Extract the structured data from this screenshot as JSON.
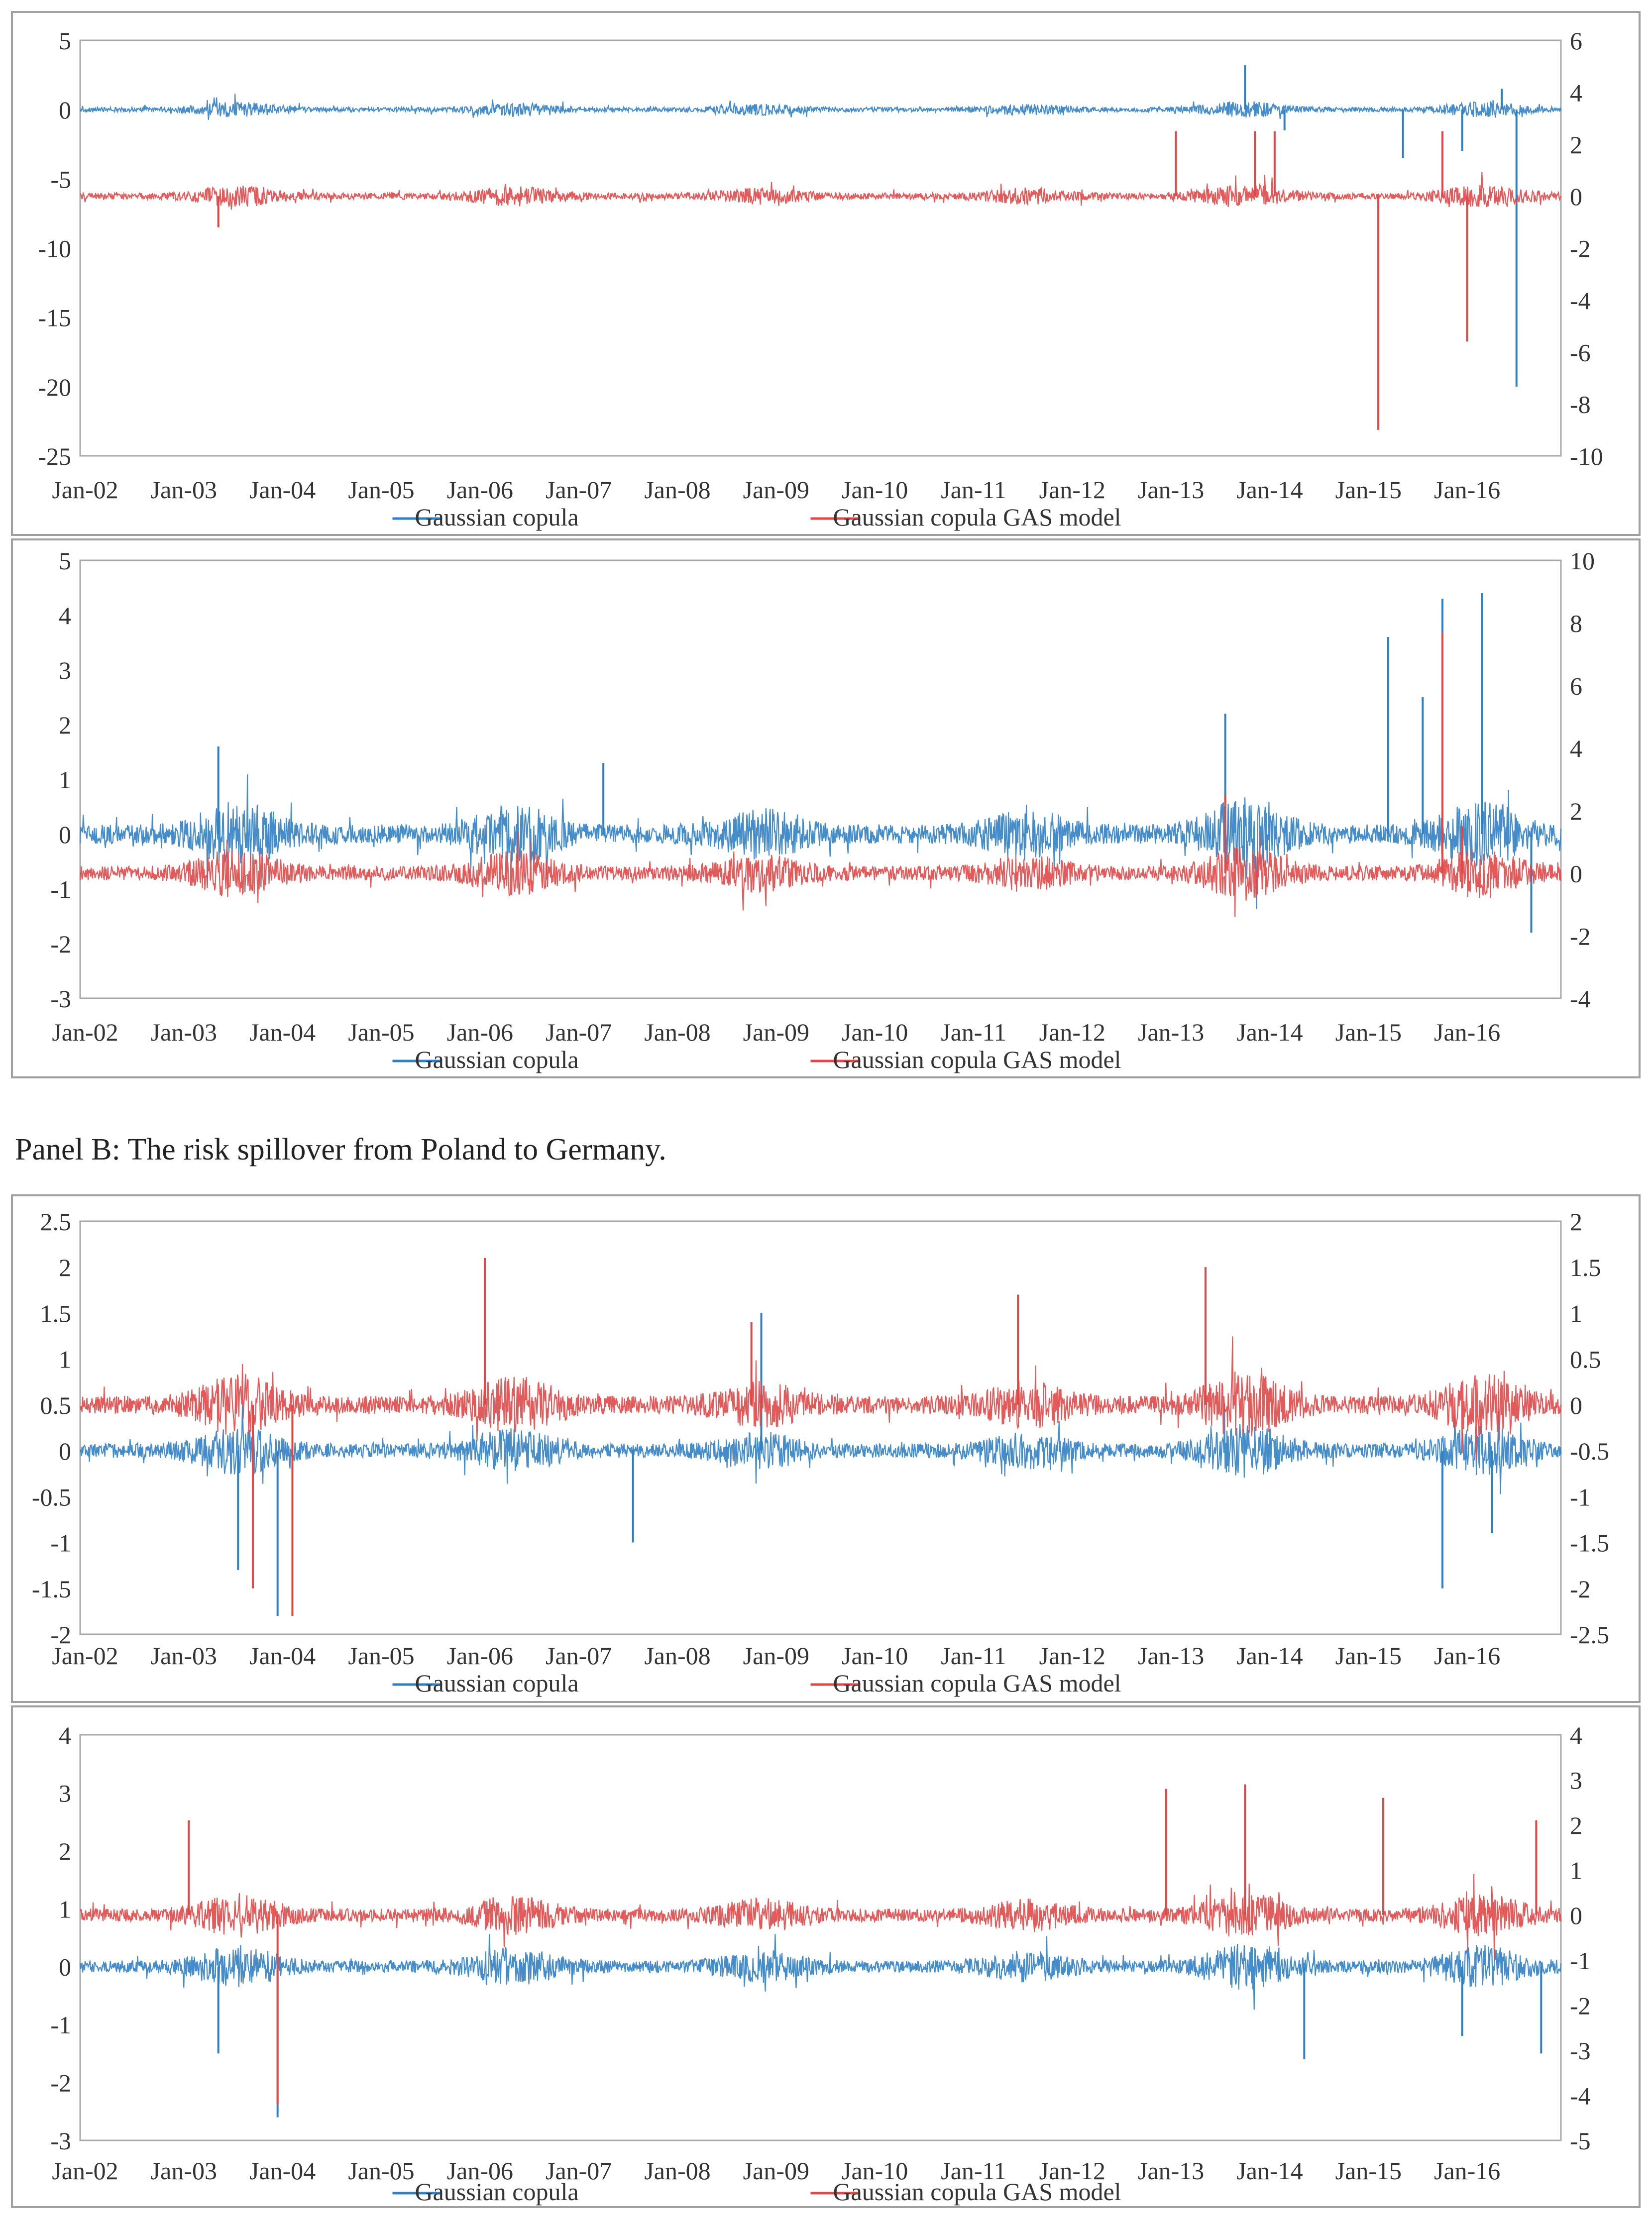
{
  "caption": "Panel B: The risk spillover from Poland to Germany.",
  "colors": {
    "gaussian": "#3080c4",
    "gas": "#e04848",
    "axis": "#a8a8a8",
    "text": "#333333"
  },
  "chart_data": [
    {
      "type": "line",
      "x": [
        "Jan-02",
        "Jan-03",
        "Jan-04",
        "Jan-05",
        "Jan-06",
        "Jan-07",
        "Jan-08",
        "Jan-09",
        "Jan-10",
        "Jan-11",
        "Jan-12",
        "Jan-13",
        "Jan-14",
        "Jan-15",
        "Jan-16"
      ],
      "left_axis": {
        "ticks": [
          "5",
          "0",
          "-5",
          "-10",
          "-15",
          "-20",
          "-25"
        ],
        "ylim": [
          -25,
          5
        ]
      },
      "right_axis": {
        "ticks": [
          "6",
          "4",
          "2",
          "0",
          "-2",
          "-4",
          "-6",
          "-8",
          "-10"
        ],
        "ylim": [
          -10,
          6
        ]
      },
      "series": [
        {
          "name": "Gaussian copula",
          "axis": "left",
          "baseline": 0,
          "noise": 0.45,
          "spikes": [
            [
              11.8,
              3.2
            ],
            [
              12.2,
              -1.5
            ],
            [
              13.4,
              -3.5
            ],
            [
              14.0,
              -3.0
            ],
            [
              14.55,
              -20.0
            ],
            [
              14.4,
              1.5
            ]
          ]
        },
        {
          "name": "Gaussian copula GAS model",
          "axis": "right",
          "baseline": 0,
          "noise": 0.35,
          "spikes": [
            [
              1.4,
              -1.2
            ],
            [
              11.1,
              2.5
            ],
            [
              11.9,
              2.5
            ],
            [
              12.1,
              2.5
            ],
            [
              13.15,
              -9.0
            ],
            [
              14.05,
              -5.6
            ],
            [
              13.8,
              2.5
            ]
          ]
        }
      ]
    },
    {
      "type": "line",
      "x": [
        "Jan-02",
        "Jan-03",
        "Jan-04",
        "Jan-05",
        "Jan-06",
        "Jan-07",
        "Jan-08",
        "Jan-09",
        "Jan-10",
        "Jan-11",
        "Jan-12",
        "Jan-13",
        "Jan-14",
        "Jan-15",
        "Jan-16"
      ],
      "left_axis": {
        "ticks": [
          "5",
          "4",
          "3",
          "2",
          "1",
          "0",
          "-1",
          "-2",
          "-3"
        ],
        "ylim": [
          -3,
          5
        ]
      },
      "right_axis": {
        "ticks": [
          "10",
          "8",
          "6",
          "4",
          "2",
          "0",
          "-2",
          "-4"
        ],
        "ylim": [
          -4,
          10
        ]
      },
      "series": [
        {
          "name": "Gaussian copula",
          "axis": "left",
          "baseline": 0,
          "noise": 0.5,
          "spikes": [
            [
              1.4,
              1.6
            ],
            [
              5.3,
              1.3
            ],
            [
              11.6,
              2.2
            ],
            [
              13.25,
              3.6
            ],
            [
              13.8,
              4.3
            ],
            [
              14.2,
              4.4
            ],
            [
              13.6,
              2.5
            ],
            [
              14.7,
              -1.8
            ]
          ]
        },
        {
          "name": "Gaussian copula GAS model",
          "axis": "right",
          "baseline": 0,
          "noise": 0.65,
          "spikes": [
            [
              13.8,
              7.7
            ],
            [
              11.6,
              2.5
            ],
            [
              14.0,
              1.5
            ]
          ]
        }
      ]
    },
    {
      "type": "line",
      "x": [
        "Jan-02",
        "Jan-03",
        "Jan-04",
        "Jan-05",
        "Jan-06",
        "Jan-07",
        "Jan-08",
        "Jan-09",
        "Jan-10",
        "Jan-11",
        "Jan-12",
        "Jan-13",
        "Jan-14",
        "Jan-15",
        "Jan-16"
      ],
      "left_axis": {
        "ticks": [
          "2.5",
          "2",
          "1.5",
          "1",
          "0.5",
          "0",
          "-0.5",
          "-1",
          "-1.5",
          "-2"
        ],
        "ylim": [
          -2,
          2.5
        ]
      },
      "right_axis": {
        "ticks": [
          "2",
          "1.5",
          "1",
          "0.5",
          "0",
          "-0.5",
          "-1",
          "-1.5",
          "-2",
          "-2.5"
        ],
        "ylim": [
          -2.5,
          2
        ]
      },
      "series": [
        {
          "name": "Gaussian copula",
          "axis": "left",
          "baseline": 0,
          "noise": 0.22,
          "spikes": [
            [
              1.6,
              -1.3
            ],
            [
              2.0,
              -1.8
            ],
            [
              5.6,
              -1.0
            ],
            [
              6.9,
              1.5
            ],
            [
              13.8,
              -1.5
            ],
            [
              14.3,
              -0.9
            ]
          ]
        },
        {
          "name": "Gaussian copula GAS model",
          "axis": "right",
          "baseline": 0,
          "noise": 0.28,
          "spikes": [
            [
              1.75,
              -2.0
            ],
            [
              2.15,
              -2.3
            ],
            [
              4.1,
              1.6
            ],
            [
              11.4,
              1.5
            ],
            [
              9.5,
              1.2
            ],
            [
              6.8,
              0.9
            ]
          ]
        }
      ]
    },
    {
      "type": "line",
      "x": [
        "Jan-02",
        "Jan-03",
        "Jan-04",
        "Jan-05",
        "Jan-06",
        "Jan-07",
        "Jan-08",
        "Jan-09",
        "Jan-10",
        "Jan-11",
        "Jan-12",
        "Jan-13",
        "Jan-14",
        "Jan-15",
        "Jan-16"
      ],
      "left_axis": {
        "ticks": [
          "4",
          "3",
          "2",
          "1",
          "0",
          "-1",
          "-2",
          "-3"
        ],
        "ylim": [
          -3,
          4
        ]
      },
      "right_axis": {
        "ticks": [
          "4",
          "3",
          "2",
          "1",
          "0",
          "-1",
          "-2",
          "-3",
          "-4",
          "-5"
        ],
        "ylim": [
          -5,
          4
        ]
      },
      "series": [
        {
          "name": "Gaussian copula",
          "axis": "left",
          "baseline": 0,
          "noise": 0.3,
          "spikes": [
            [
              2.0,
              -2.6
            ],
            [
              1.4,
              -1.5
            ],
            [
              12.4,
              -1.6
            ],
            [
              14.8,
              -1.5
            ],
            [
              14.0,
              -1.2
            ]
          ]
        },
        {
          "name": "Gaussian copula GAS model",
          "axis": "right",
          "baseline": 0,
          "noise": 0.4,
          "spikes": [
            [
              2.0,
              -4.2
            ],
            [
              1.1,
              2.1
            ],
            [
              11.0,
              2.8
            ],
            [
              11.8,
              2.9
            ],
            [
              13.2,
              2.6
            ],
            [
              14.75,
              2.1
            ]
          ]
        }
      ]
    }
  ]
}
